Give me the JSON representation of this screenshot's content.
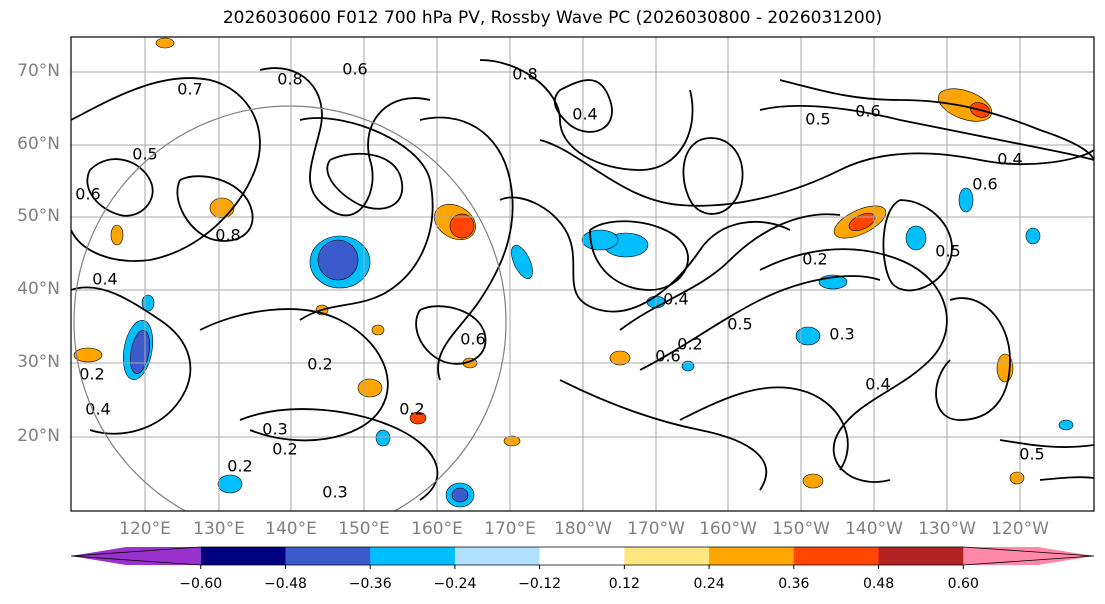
{
  "title": "2026030600 F012 700 hPa PV, Rossby Wave PC (2026030800 - 2026031200)",
  "lat_ticks": [
    "70°N",
    "60°N",
    "50°N",
    "40°N",
    "30°N",
    "20°N"
  ],
  "lon_ticks": [
    "120°E",
    "130°E",
    "140°E",
    "150°E",
    "160°E",
    "170°E",
    "180°W",
    "170°W",
    "160°W",
    "150°W",
    "140°W",
    "130°W",
    "120°W"
  ],
  "colorbar": {
    "labels": [
      "−0.60",
      "−0.48",
      "−0.36",
      "−0.24",
      "−0.12",
      "0.12",
      "0.24",
      "0.36",
      "0.48",
      "0.60"
    ],
    "colors": [
      "#9932cc",
      "#000080",
      "#3b5bcc",
      "#00bfff",
      "#b0e0ff",
      "#ffffff",
      "#ffe680",
      "#ffa500",
      "#ff4500",
      "#b22222",
      "#ff88aa"
    ]
  },
  "contour_labels": [
    "0.8",
    "0.6",
    "0.7",
    "0.5",
    "0.6",
    "0.8",
    "0.4",
    "0.2",
    "0.3",
    "0.2",
    "0.4",
    "0.2",
    "0.3",
    "0.8",
    "0.4",
    "0.6",
    "0.5",
    "0.4",
    "0.6",
    "0.5",
    "0.2",
    "0.3",
    "0.4",
    "0.5",
    "0.2",
    "0.6",
    "0.2",
    "0.2",
    "0.4",
    "0.6",
    "0.5"
  ],
  "colors": {
    "land": "#000000",
    "grid": "#aaaaaa",
    "contour": "#000000",
    "circle": "#808080"
  }
}
